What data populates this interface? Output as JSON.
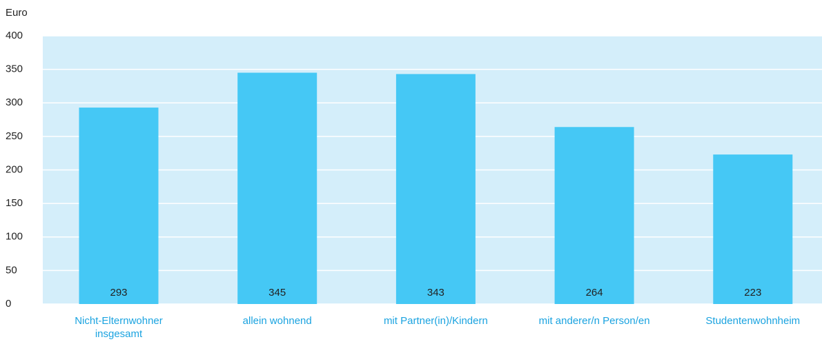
{
  "chart_data": {
    "type": "bar",
    "y_label": "Euro",
    "categories": [
      "Nicht-Elternwohner\ninsgesamt",
      "allein wohnend",
      "mit Partner(in)/Kindern",
      "mit anderer/n Person/en",
      "Studentenwohnheim"
    ],
    "values": [
      293,
      345,
      343,
      264,
      223
    ],
    "color": "#45c8f5",
    "plot_background": "#d4eefa",
    "category_color": "#1aa3e0",
    "ylim": [
      0,
      400
    ],
    "yticks": [
      0,
      50,
      100,
      150,
      200,
      250,
      300,
      350,
      400
    ],
    "grid": true
  }
}
